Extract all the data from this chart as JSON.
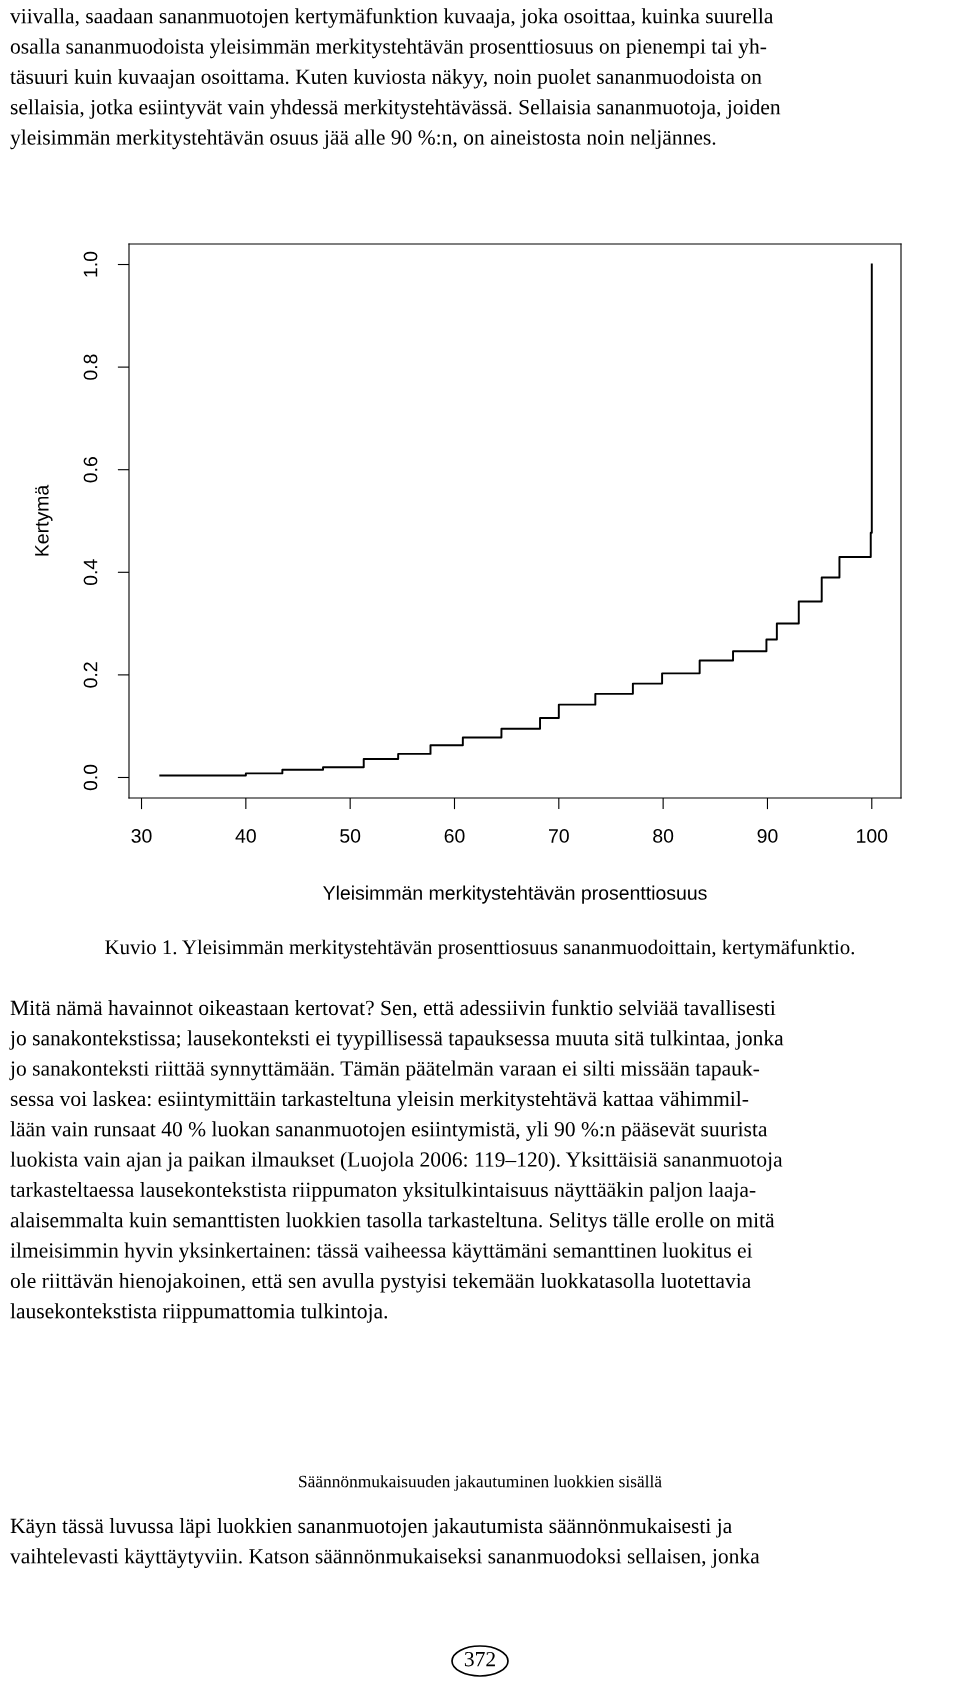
{
  "chart_data": {
    "type": "step",
    "title": "Kuvio 1. Yleisimmän merkitystehtävän prosenttiosuus sananmuodoittain, kertymäfunktio.",
    "xlabel": "Yleisimmän merkitystehtävän prosenttiosuus",
    "ylabel": "Kertymä",
    "x": [
      31.8,
      40,
      43.5,
      47.4,
      51.3,
      54.6,
      57.7,
      60.8,
      64.5,
      68.2,
      70.0,
      73.5,
      77.1,
      79.9,
      83.5,
      86.7,
      89.9,
      90.9,
      93.0,
      95.2,
      96.9,
      99.9,
      100
    ],
    "series": [
      {
        "color": "#000000",
        "values": [
          0.004,
          0.008,
          0.015,
          0.02,
          0.036,
          0.046,
          0.063,
          0.078,
          0.095,
          0.116,
          0.142,
          0.163,
          0.183,
          0.203,
          0.228,
          0.246,
          0.269,
          0.3,
          0.343,
          0.39,
          0.43,
          0.477,
          1.0
        ]
      }
    ],
    "xlim": [
      28.8,
      102.8
    ],
    "ylim": [
      -0.04,
      1.04
    ],
    "xticks": [
      30,
      40,
      50,
      60,
      70,
      80,
      90,
      100
    ],
    "yticks": [
      {
        "value": 0,
        "label": "0.0"
      },
      {
        "value": 0.2,
        "label": "0.2"
      },
      {
        "value": 0.4,
        "label": "0.4"
      },
      {
        "value": 0.6,
        "label": "0.6"
      },
      {
        "value": 0.8,
        "label": "0.8"
      },
      {
        "value": 1.0,
        "label": "1.0"
      }
    ],
    "grid": false,
    "legend": false,
    "annotations": [
      "viivalla, saadaan sananmuotojen kertymäfunktion kuvaaja, joka osoittaa, kuinka suurella\nosalla sananmuodoista yleisimmän merkitystehtävän prosenttiosuus on pienempi tai yh-\ntäsuuri kuin kuvaajan osoittama. Kuten kuviosta näkyy, noin puolet sananmuodoista on\nsellaisia, jotka esiintyvät vain yhdessä merkitystehtävässä. Sellaisia sananmuotoja, joiden\nyleisimmän merkitystehtävän osuus jää alle 90 %:n, on aineistosta noin neljännes.",
      "Mitä nämä havainnot oikeastaan kertovat? Sen, että adessiivin funktio selviää tavallisesti\njo sanakontekstissa; lausekonteksti ei tyypillisessä tapauksessa muuta sitä tulkintaa, jonka\njo sanakonteksti riittää synnyttämään. Tämän päätelmän varaan ei silti missään tapauk-\nsessa voi laskea: esiintymittäin tarkasteltuna yleisin merkitystehtävä kattaa vähimmil-\nlään vain runsaat 40 % luokan sananmuotojen esiintymistä, yli 90 %:n pääsevät suurista\nluokista vain ajan ja paikan ilmaukset (Luojola 2006: 119–120). Yksittäisiä sananmuotoja\ntarkasteltaessa lausekontekstista riippumaton yksitulkintaisuus näyttääkin paljon laaja-\nalaisemmalta kuin semanttisten luokkien tasolla tarkasteltuna. Selitys tälle erolle on mitä\nilmeisimmin hyvin yksinkertainen: tässä vaiheessa käyttämäni semanttinen luokitus ei\nole riittävän hienojakoinen, että sen avulla pystyisi tekemään luokkatasolla luotettavia\nlausekontekstista riippumattomia tulkintoja.",
      "Säännönmukaisuuden jakautuminen luokkien sisällä",
      "Käyn tässä luvussa läpi luokkien sananmuotojen jakautumista säännönmukaisesti ja\nvaihtelevasti käyttäytyviin. Katson säännönmukaiseksi sananmuodoksi sellaisen, jonka",
      "372"
    ]
  }
}
